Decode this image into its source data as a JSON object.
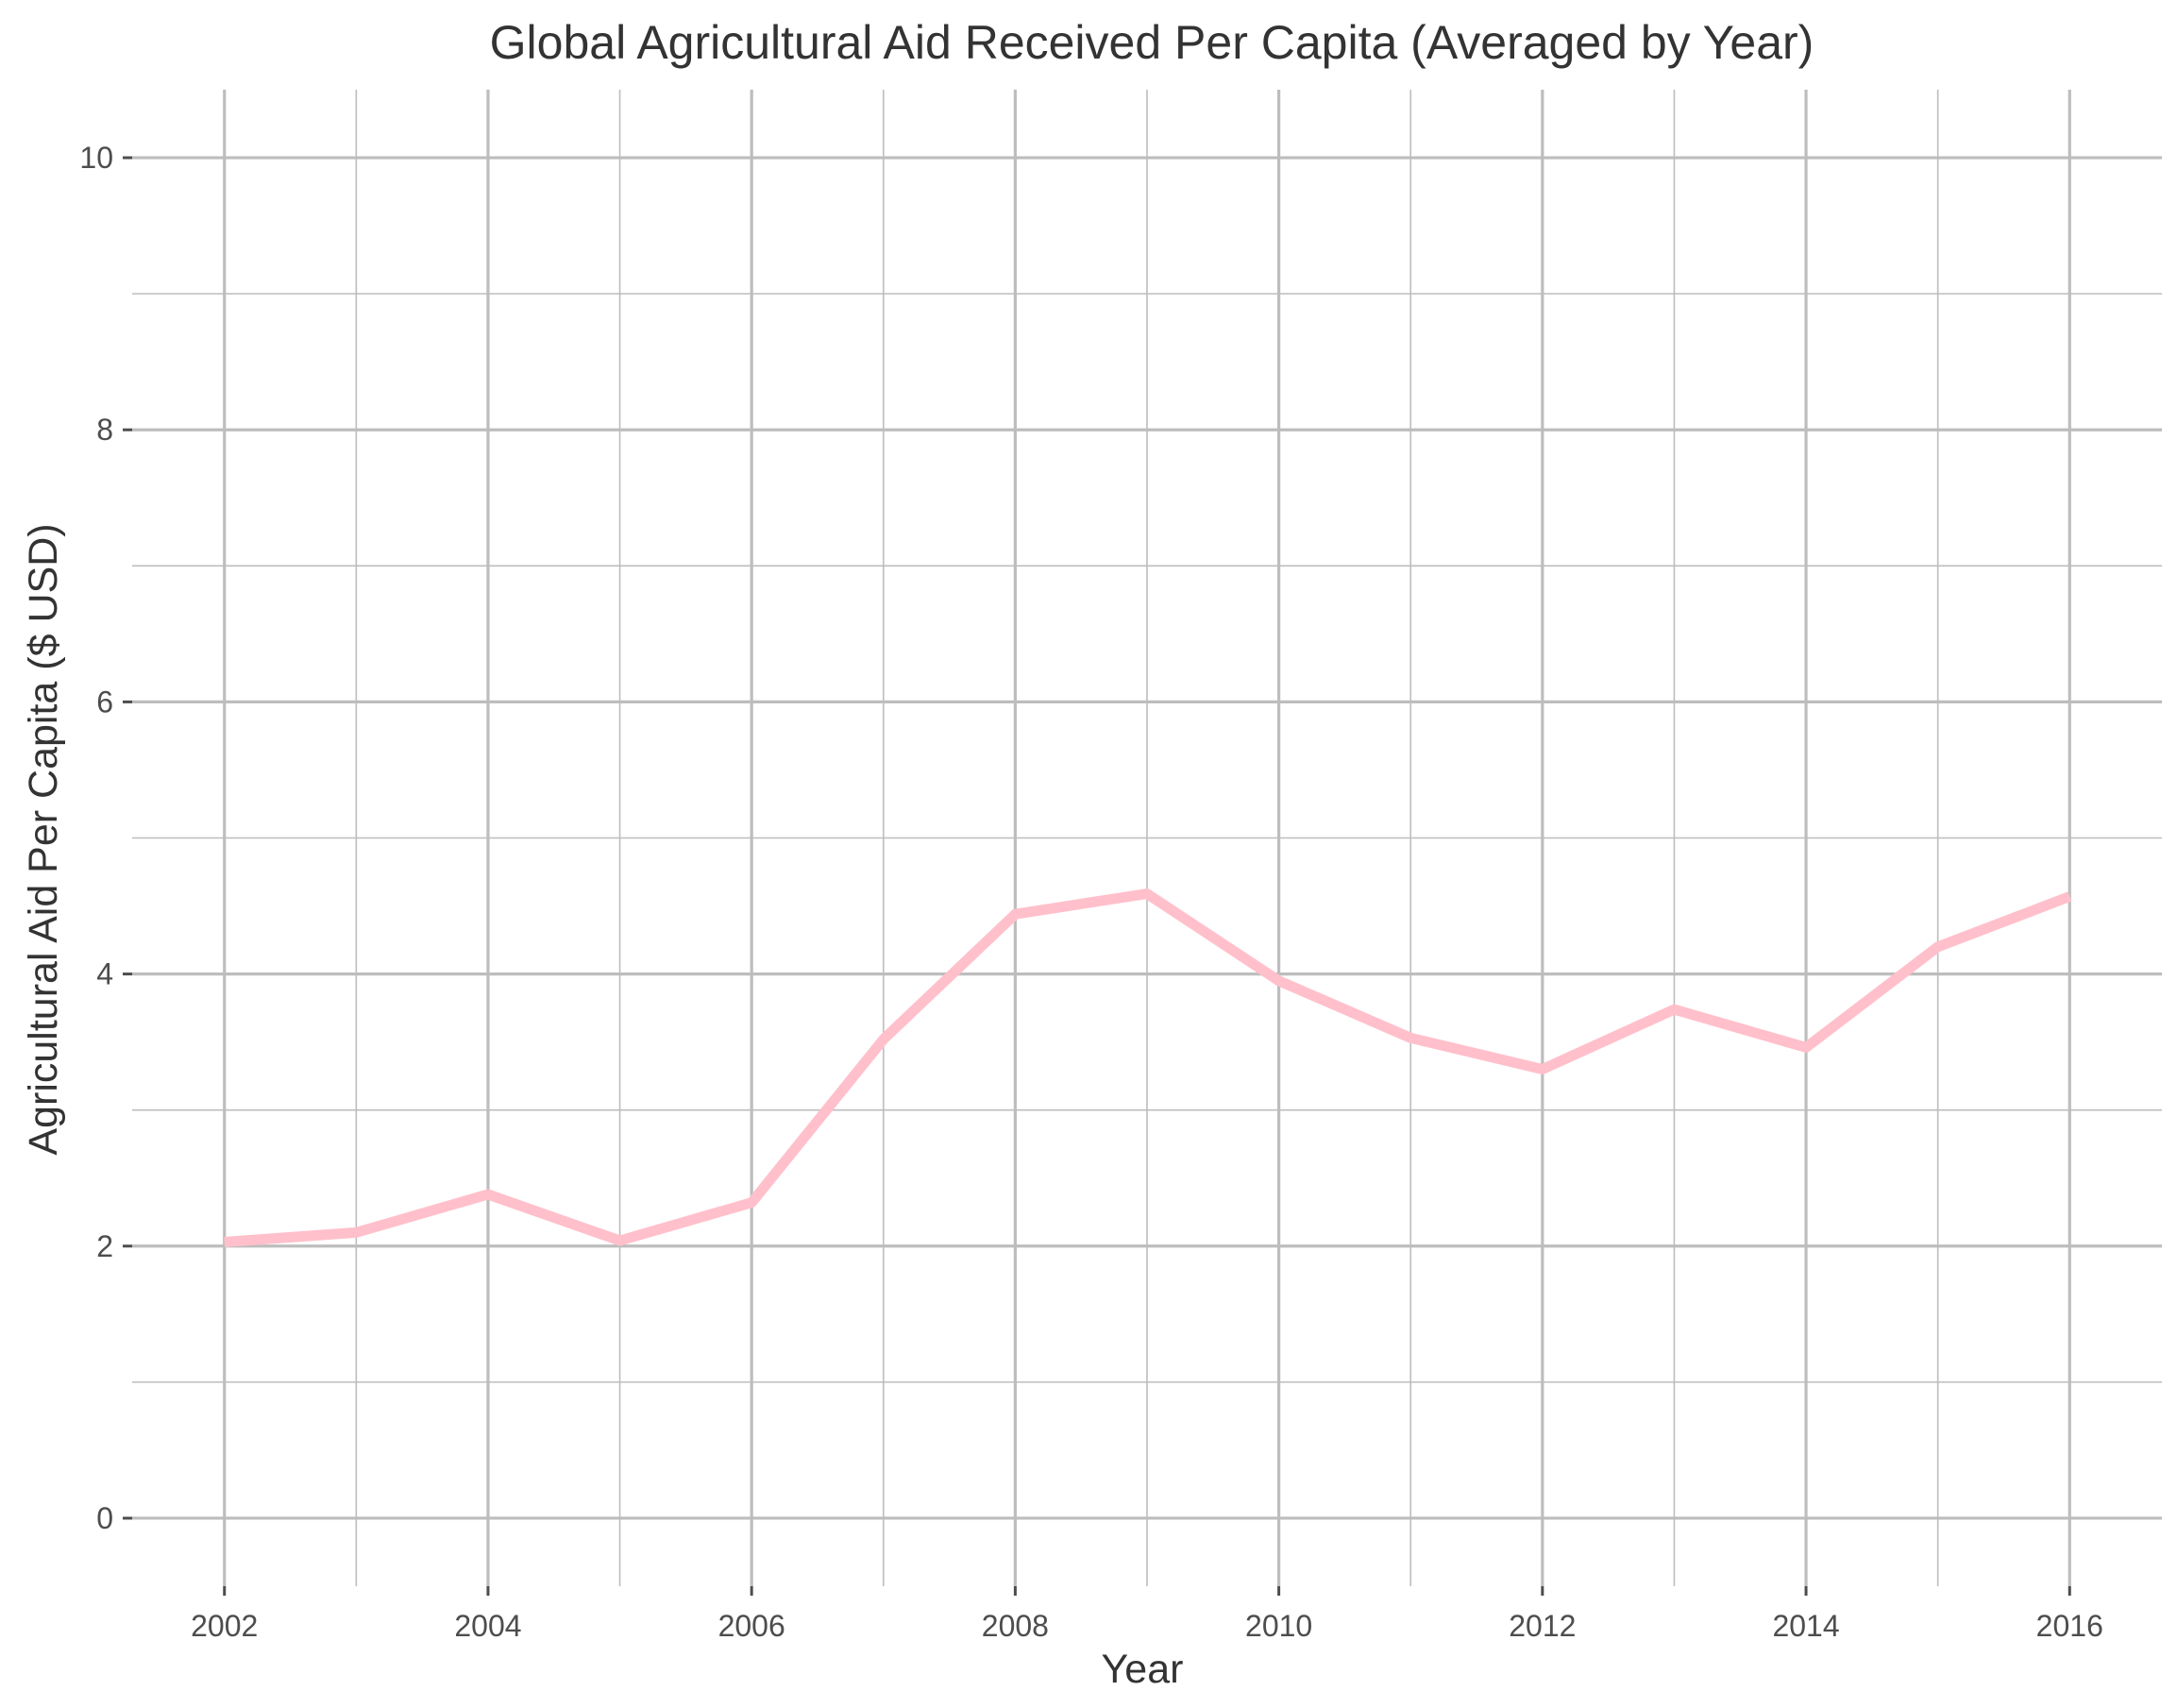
{
  "chart_data": {
    "type": "line",
    "title": "Global Agricultural Aid Received Per Capita (Averaged by Year)",
    "xlabel": "Year",
    "ylabel": "Agricultural Aid Per Capita ($ USD)",
    "x": [
      2002,
      2003,
      2004,
      2005,
      2006,
      2007,
      2008,
      2009,
      2010,
      2011,
      2012,
      2013,
      2014,
      2015,
      2016
    ],
    "series": [
      {
        "values": [
          2.03,
          2.1,
          2.38,
          2.04,
          2.32,
          3.52,
          4.44,
          4.59,
          3.95,
          3.53,
          3.3,
          3.74,
          3.46,
          4.2,
          4.57
        ],
        "color": "#FFC0CB"
      }
    ],
    "xlim": [
      2001.3,
      2016.7
    ],
    "ylim": [
      -0.5,
      10.5
    ],
    "x_major_ticks": [
      2002,
      2004,
      2006,
      2008,
      2010,
      2012,
      2014,
      2016
    ],
    "x_minor_ticks": [
      2003,
      2005,
      2007,
      2009,
      2011,
      2013,
      2015
    ],
    "y_major_ticks": [
      0,
      2,
      4,
      6,
      8,
      10
    ],
    "y_minor_ticks": [
      1,
      3,
      5,
      7,
      9
    ],
    "grid": true,
    "legend": "none",
    "colors": {
      "line": "#FFC0CB",
      "grid": "#BDBDBD",
      "text": "#333333",
      "background": "#FFFFFF"
    }
  }
}
